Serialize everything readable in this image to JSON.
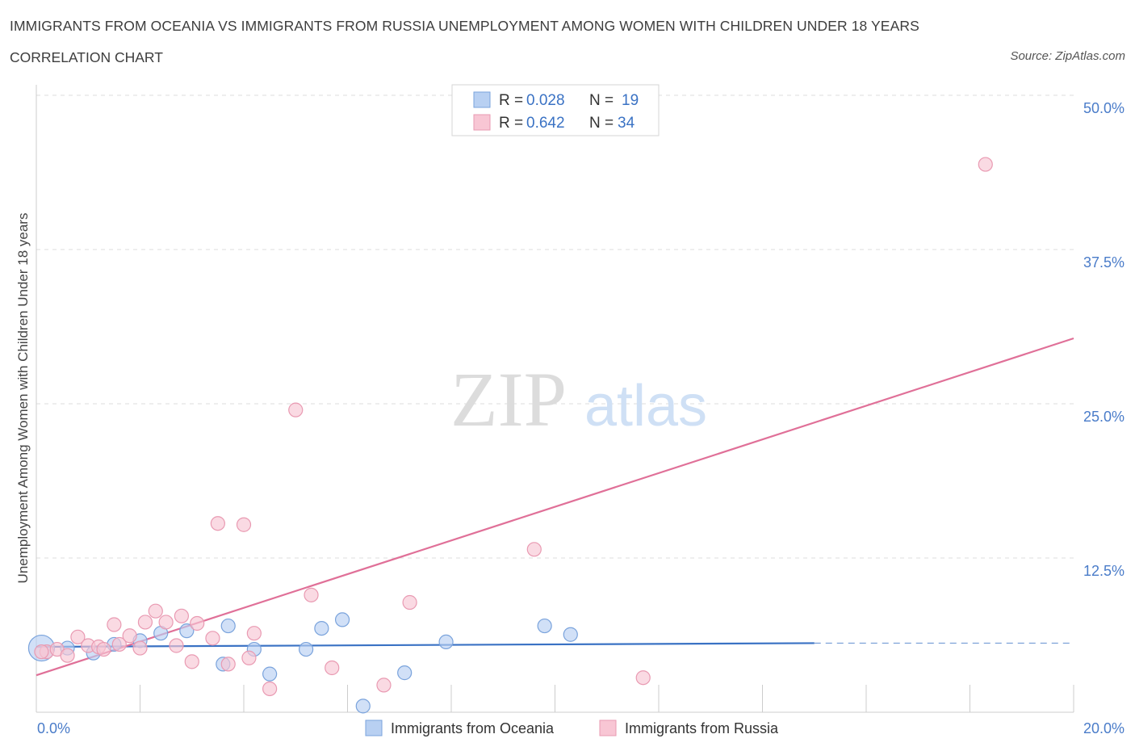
{
  "header": {
    "title": "IMMIGRANTS FROM OCEANIA VS IMMIGRANTS FROM RUSSIA UNEMPLOYMENT AMONG WOMEN WITH CHILDREN UNDER 18 YEARS",
    "subtitle": "CORRELATION CHART",
    "source": "Source: ZipAtlas.com"
  },
  "legend": {
    "oceania": {
      "r_label": "R =",
      "r_value": "0.028",
      "n_label": "N =",
      "n_value": "19"
    },
    "russia": {
      "r_label": "R =",
      "r_value": "0.642",
      "n_label": "N =",
      "n_value": "34"
    }
  },
  "watermark": {
    "zip": "ZIP",
    "atlas": "atlas"
  },
  "colors": {
    "oceania_fill": "#b8d0f2",
    "oceania_stroke": "#7aa3dc",
    "oceania_line": "#3a72c4",
    "russia_fill": "#f8c6d4",
    "russia_stroke": "#e99ab2",
    "russia_line": "#e07098",
    "grid": "#dddddd",
    "tick_label": "#4a7cc9"
  },
  "chart_data": {
    "type": "scatter",
    "title": "IMMIGRANTS FROM OCEANIA VS IMMIGRANTS FROM RUSSIA UNEMPLOYMENT AMONG WOMEN WITH CHILDREN UNDER 18 YEARS",
    "xlabel": "",
    "ylabel": "Unemployment Among Women with Children Under 18 years",
    "xlim": [
      0,
      20
    ],
    "ylim": [
      0,
      50
    ],
    "x_tick_labels": [
      "0.0%",
      "20.0%"
    ],
    "y_ticks": [
      12.5,
      25.0,
      37.5,
      50.0
    ],
    "y_tick_labels": [
      "12.5%",
      "25.0%",
      "37.5%",
      "50.0%"
    ],
    "legend_position": "bottom-center",
    "series": [
      {
        "name": "Immigrants from Oceania",
        "points": [
          {
            "x": 0.1,
            "y": 5.2,
            "big": true
          },
          {
            "x": 0.6,
            "y": 5.2
          },
          {
            "x": 1.5,
            "y": 5.5
          },
          {
            "x": 2.0,
            "y": 5.8
          },
          {
            "x": 2.4,
            "y": 6.4
          },
          {
            "x": 2.9,
            "y": 6.6
          },
          {
            "x": 3.6,
            "y": 3.9
          },
          {
            "x": 3.7,
            "y": 7.0
          },
          {
            "x": 4.2,
            "y": 5.1
          },
          {
            "x": 4.5,
            "y": 3.1
          },
          {
            "x": 5.2,
            "y": 5.1
          },
          {
            "x": 5.5,
            "y": 6.8
          },
          {
            "x": 5.9,
            "y": 7.5
          },
          {
            "x": 6.3,
            "y": 0.5
          },
          {
            "x": 7.1,
            "y": 3.2
          },
          {
            "x": 7.9,
            "y": 5.7
          },
          {
            "x": 9.8,
            "y": 7.0
          },
          {
            "x": 10.3,
            "y": 6.3
          },
          {
            "x": 1.1,
            "y": 4.8
          }
        ],
        "trend": {
          "x": [
            0,
            15
          ],
          "y": [
            5.3,
            5.6
          ],
          "dashed_to": [
            20,
            5.6
          ]
        }
      },
      {
        "name": "Immigrants from Russia",
        "points": [
          {
            "x": 0.2,
            "y": 4.9
          },
          {
            "x": 0.4,
            "y": 5.1
          },
          {
            "x": 0.6,
            "y": 4.6
          },
          {
            "x": 0.8,
            "y": 6.1
          },
          {
            "x": 1.0,
            "y": 5.4
          },
          {
            "x": 1.2,
            "y": 5.3
          },
          {
            "x": 1.3,
            "y": 5.1
          },
          {
            "x": 1.5,
            "y": 7.1
          },
          {
            "x": 1.6,
            "y": 5.5
          },
          {
            "x": 1.8,
            "y": 6.2
          },
          {
            "x": 2.0,
            "y": 5.2
          },
          {
            "x": 2.1,
            "y": 7.3
          },
          {
            "x": 2.3,
            "y": 8.2
          },
          {
            "x": 2.5,
            "y": 7.3
          },
          {
            "x": 2.7,
            "y": 5.4
          },
          {
            "x": 2.8,
            "y": 7.8
          },
          {
            "x": 3.0,
            "y": 4.1
          },
          {
            "x": 3.1,
            "y": 7.2
          },
          {
            "x": 3.4,
            "y": 6.0
          },
          {
            "x": 3.7,
            "y": 3.9
          },
          {
            "x": 3.5,
            "y": 15.3
          },
          {
            "x": 4.0,
            "y": 15.2
          },
          {
            "x": 4.1,
            "y": 4.4
          },
          {
            "x": 4.2,
            "y": 6.4
          },
          {
            "x": 4.5,
            "y": 1.9
          },
          {
            "x": 5.0,
            "y": 24.5
          },
          {
            "x": 5.3,
            "y": 9.5
          },
          {
            "x": 5.7,
            "y": 3.6
          },
          {
            "x": 6.7,
            "y": 2.2
          },
          {
            "x": 7.2,
            "y": 8.9
          },
          {
            "x": 9.6,
            "y": 13.2
          },
          {
            "x": 11.7,
            "y": 2.8
          },
          {
            "x": 18.3,
            "y": 44.4
          },
          {
            "x": 0.1,
            "y": 4.9
          }
        ],
        "trend": {
          "x": [
            0,
            20
          ],
          "y": [
            3.0,
            30.3
          ]
        }
      }
    ]
  },
  "bottom_legend": {
    "oceania_label": "Immigrants from Oceania",
    "russia_label": "Immigrants from Russia"
  }
}
